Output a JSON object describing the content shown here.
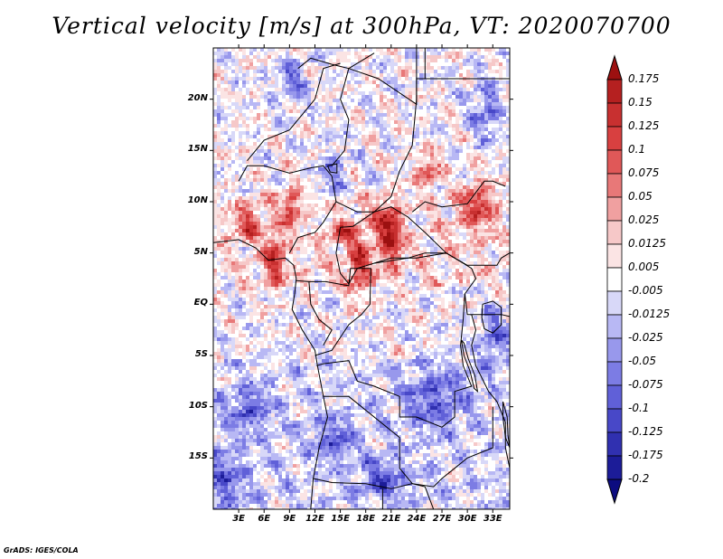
{
  "title": "Vertical velocity [m/s] at 300hPa, VT: 2020070700",
  "credit": "GrADS: IGES/COLA",
  "map": {
    "variable": "Vertical velocity",
    "units": "m/s",
    "level": "300hPa",
    "valid_time": "2020070700",
    "lon_range": [
      0,
      35
    ],
    "lat_range": [
      -20,
      25
    ],
    "y_ticks": [
      {
        "lat": 20,
        "label": "20N"
      },
      {
        "lat": 15,
        "label": "15N"
      },
      {
        "lat": 10,
        "label": "10N"
      },
      {
        "lat": 5,
        "label": "5N"
      },
      {
        "lat": 0,
        "label": "EQ"
      },
      {
        "lat": -5,
        "label": "5S"
      },
      {
        "lat": -10,
        "label": "10S"
      },
      {
        "lat": -15,
        "label": "15S"
      }
    ],
    "x_ticks": [
      {
        "lon": 3,
        "label": "3E"
      },
      {
        "lon": 6,
        "label": "6E"
      },
      {
        "lon": 9,
        "label": "9E"
      },
      {
        "lon": 12,
        "label": "12E"
      },
      {
        "lon": 15,
        "label": "15E"
      },
      {
        "lon": 18,
        "label": "18E"
      },
      {
        "lon": 21,
        "label": "21E"
      },
      {
        "lon": 24,
        "label": "24E"
      },
      {
        "lon": 27,
        "label": "27E"
      },
      {
        "lon": 30,
        "label": "30E"
      },
      {
        "lon": 33,
        "label": "33E"
      }
    ]
  },
  "colorbar": {
    "labels": [
      "0.175",
      "0.15",
      "0.125",
      "0.1",
      "0.075",
      "0.05",
      "0.025",
      "0.0125",
      "0.005",
      "-0.005",
      "-0.0125",
      "-0.025",
      "-0.05",
      "-0.075",
      "-0.1",
      "-0.125",
      "-0.175",
      "-0.2"
    ],
    "colors": [
      "#9c1010",
      "#b52020",
      "#c83030",
      "#d84040",
      "#e05858",
      "#e87878",
      "#f0a0a0",
      "#f6c8c8",
      "#fbe4e4",
      "#ffffff",
      "#d8d8f8",
      "#b8b8f4",
      "#9898ec",
      "#7c7ce4",
      "#6060d8",
      "#4848c8",
      "#3030b0",
      "#1c1c98",
      "#0c0c80"
    ]
  }
}
